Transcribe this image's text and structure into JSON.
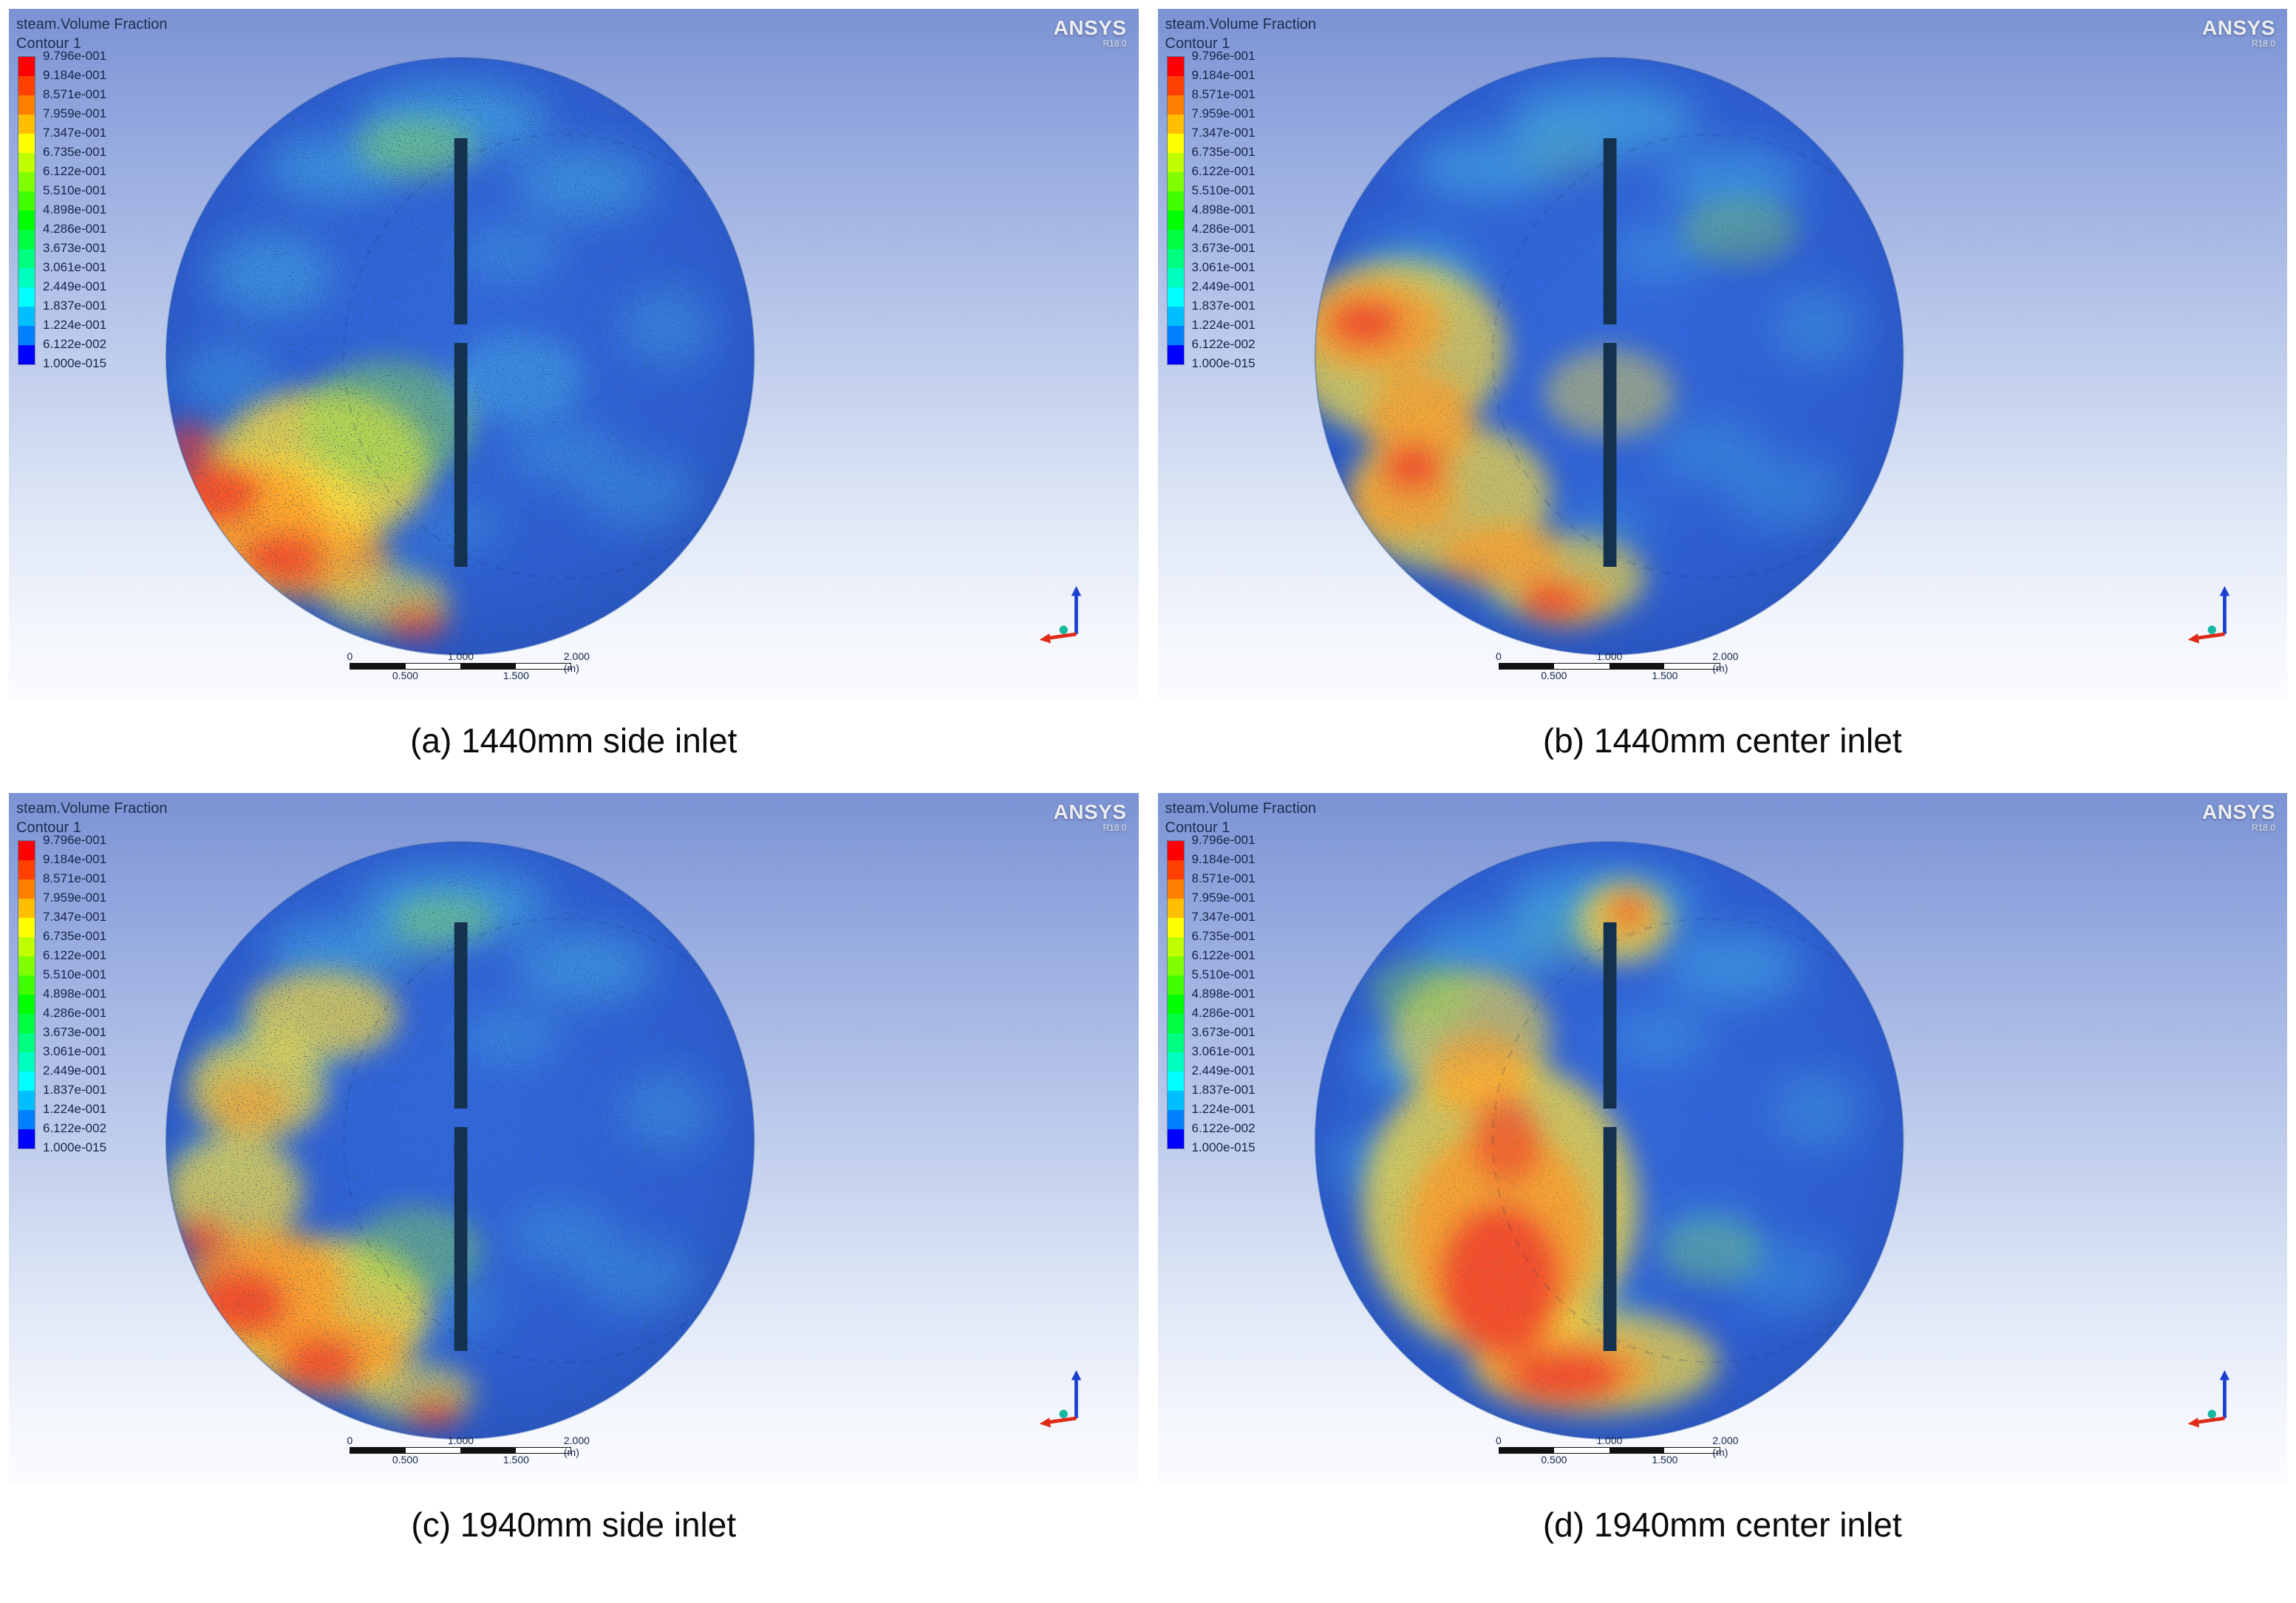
{
  "figure": {
    "header": {
      "line1": "steam.Volume Fraction",
      "line2": "Contour 1"
    },
    "brand": {
      "name": "ANSYS",
      "version": "R18.0"
    },
    "legend": {
      "values": [
        "9.796e-001",
        "9.184e-001",
        "8.571e-001",
        "7.959e-001",
        "7.347e-001",
        "6.735e-001",
        "6.122e-001",
        "5.510e-001",
        "4.898e-001",
        "4.286e-001",
        "3.673e-001",
        "3.061e-001",
        "2.449e-001",
        "1.837e-001",
        "1.224e-001",
        "6.122e-002",
        "1.000e-015"
      ],
      "colors": [
        "#ff0000",
        "#ff4000",
        "#ff8000",
        "#ffbf00",
        "#ffff00",
        "#bfff00",
        "#80ff00",
        "#40ff00",
        "#00ff00",
        "#00ff40",
        "#00ff80",
        "#00ffbf",
        "#00ffff",
        "#00bfff",
        "#0080ff",
        "#0000ff"
      ]
    },
    "scalebar": {
      "t0": "0",
      "t1": "1.000",
      "t2": "2.000 (m)",
      "b0": "0.500",
      "b1": "1.500"
    },
    "shared_mottle": [
      [
        "#49c8ea",
        610,
        150,
        130,
        48,
        0.5
      ],
      [
        "#49c8ea",
        450,
        215,
        95,
        42,
        0.45
      ],
      [
        "#49c8ea",
        790,
        235,
        95,
        48,
        0.4
      ],
      [
        "#49c8ea",
        690,
        330,
        70,
        36,
        0.3
      ],
      [
        "#49c8ea",
        360,
        360,
        85,
        55,
        0.4
      ],
      [
        "#49c8ea",
        905,
        430,
        62,
        52,
        0.28
      ],
      [
        "#49c8ea",
        760,
        600,
        75,
        45,
        0.26
      ],
      [
        "#49c8ea",
        865,
        655,
        80,
        48,
        0.26
      ],
      [
        "#49c8ea",
        500,
        770,
        75,
        40,
        0.3
      ],
      [
        "#6fd68f",
        560,
        200,
        60,
        30,
        0.3
      ],
      [
        "#49c8ea",
        620,
        700,
        60,
        35,
        0.25
      ],
      [
        "#49c8ea",
        300,
        500,
        70,
        45,
        0.3
      ]
    ],
    "panels": [
      {
        "caption": "(a) 1440mm side inlet",
        "speckle": 0.6,
        "blobs": [
          [
            "#ffe03a",
            430,
            620,
            150,
            105,
            0.8
          ],
          [
            "#ffe03a",
            350,
            700,
            150,
            95,
            0.8
          ],
          [
            "#8ee04e",
            520,
            560,
            120,
            85,
            0.5
          ],
          [
            "#8ee04e",
            560,
            185,
            85,
            38,
            0.4
          ],
          [
            "#ff9a2a",
            330,
            690,
            105,
            75,
            0.75
          ],
          [
            "#ff9a2a",
            430,
            745,
            95,
            55,
            0.7
          ],
          [
            "#ffe03a",
            520,
            800,
            85,
            40,
            0.6
          ],
          [
            "#f23c2c",
            285,
            655,
            62,
            44,
            0.8
          ],
          [
            "#f23c2c",
            375,
            745,
            60,
            38,
            0.75
          ],
          [
            "#f23c2c",
            250,
            590,
            40,
            30,
            0.65
          ],
          [
            "#f23c2c",
            560,
            830,
            45,
            22,
            0.7
          ],
          [
            "#49c8ea",
            700,
            500,
            90,
            60,
            0.35
          ]
        ]
      },
      {
        "caption": "(b) 1440mm center inlet",
        "speckle": 0.3,
        "blobs": [
          [
            "#ffe03a",
            330,
            460,
            150,
            120,
            0.7
          ],
          [
            "#ffe03a",
            400,
            660,
            140,
            100,
            0.7
          ],
          [
            "#ffe03a",
            560,
            770,
            110,
            60,
            0.65
          ],
          [
            "#ffe03a",
            620,
            520,
            90,
            60,
            0.45
          ],
          [
            "#ff9a2a",
            300,
            430,
            95,
            65,
            0.75
          ],
          [
            "#ff9a2a",
            360,
            560,
            75,
            70,
            0.7
          ],
          [
            "#ff9a2a",
            340,
            660,
            75,
            55,
            0.7
          ],
          [
            "#ff9a2a",
            470,
            740,
            85,
            45,
            0.7
          ],
          [
            "#ff9a2a",
            560,
            800,
            60,
            35,
            0.7
          ],
          [
            "#f23c2c",
            285,
            425,
            50,
            32,
            0.8
          ],
          [
            "#f23c2c",
            350,
            620,
            42,
            34,
            0.75
          ],
          [
            "#f23c2c",
            540,
            800,
            45,
            24,
            0.8
          ],
          [
            "#8ee04e",
            800,
            300,
            80,
            45,
            0.35
          ]
        ]
      },
      {
        "caption": "(c) 1940mm side inlet",
        "speckle": 0.55,
        "blobs": [
          [
            "#ffe03a",
            430,
            300,
            105,
            60,
            0.7
          ],
          [
            "#ffe03a",
            340,
            400,
            95,
            70,
            0.7
          ],
          [
            "#ffe03a",
            310,
            540,
            95,
            75,
            0.7
          ],
          [
            "#ffe03a",
            420,
            700,
            160,
            100,
            0.8
          ],
          [
            "#ff9a2a",
            350,
            670,
            110,
            80,
            0.8
          ],
          [
            "#ff9a2a",
            450,
            760,
            100,
            55,
            0.75
          ],
          [
            "#ff9a2a",
            330,
            420,
            55,
            40,
            0.5
          ],
          [
            "#f23c2c",
            320,
            690,
            65,
            48,
            0.8
          ],
          [
            "#f23c2c",
            430,
            770,
            55,
            35,
            0.75
          ],
          [
            "#f23c2c",
            265,
            600,
            38,
            28,
            0.65
          ],
          [
            "#8ee04e",
            560,
            620,
            90,
            60,
            0.45
          ],
          [
            "#8ee04e",
            600,
            170,
            70,
            32,
            0.4
          ],
          [
            "#ffe03a",
            560,
            810,
            80,
            38,
            0.6
          ],
          [
            "#f23c2c",
            585,
            838,
            40,
            20,
            0.7
          ]
        ]
      },
      {
        "caption": "(d) 1940mm center inlet",
        "speckle": 0.3,
        "blobs": [
          [
            "#ffe03a",
            470,
            560,
            190,
            200,
            0.75
          ],
          [
            "#ffe03a",
            600,
            770,
            170,
            70,
            0.7
          ],
          [
            "#ffe03a",
            430,
            330,
            110,
            90,
            0.6
          ],
          [
            "#ff9a2a",
            470,
            600,
            130,
            150,
            0.78
          ],
          [
            "#ff9a2a",
            560,
            780,
            120,
            50,
            0.75
          ],
          [
            "#ff9a2a",
            440,
            380,
            70,
            60,
            0.6
          ],
          [
            "#f23c2c",
            470,
            660,
            85,
            105,
            0.8
          ],
          [
            "#f23c2c",
            560,
            790,
            80,
            38,
            0.8
          ],
          [
            "#f23c2c",
            480,
            470,
            50,
            60,
            0.6
          ],
          [
            "#ffe03a",
            640,
            175,
            65,
            55,
            0.7
          ],
          [
            "#ff9a2a",
            645,
            165,
            40,
            35,
            0.7
          ],
          [
            "#f23c2c",
            648,
            158,
            22,
            20,
            0.6
          ],
          [
            "#8ee04e",
            360,
            270,
            70,
            45,
            0.4
          ],
          [
            "#8ee04e",
            760,
            620,
            70,
            45,
            0.3
          ]
        ]
      }
    ]
  }
}
